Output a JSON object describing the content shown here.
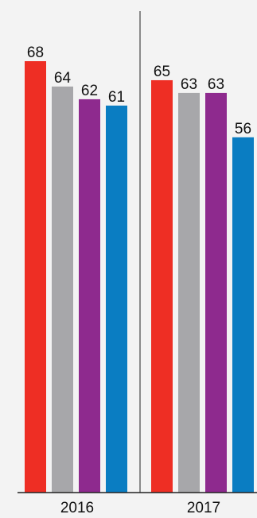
{
  "chart_data": {
    "type": "bar",
    "categories": [
      "2016",
      "2017"
    ],
    "series": [
      {
        "values": [
          68,
          65
        ],
        "color": "#ee2e24"
      },
      {
        "values": [
          64,
          63
        ],
        "color": "#a7a7aa"
      },
      {
        "values": [
          62,
          63
        ],
        "color": "#8e2a8e"
      },
      {
        "values": [
          61,
          56
        ],
        "color": "#0a7dc2"
      }
    ],
    "ylim": [
      0,
      68
    ],
    "grid": false,
    "legend": "none",
    "title": "",
    "xlabel": "",
    "ylabel": ""
  }
}
